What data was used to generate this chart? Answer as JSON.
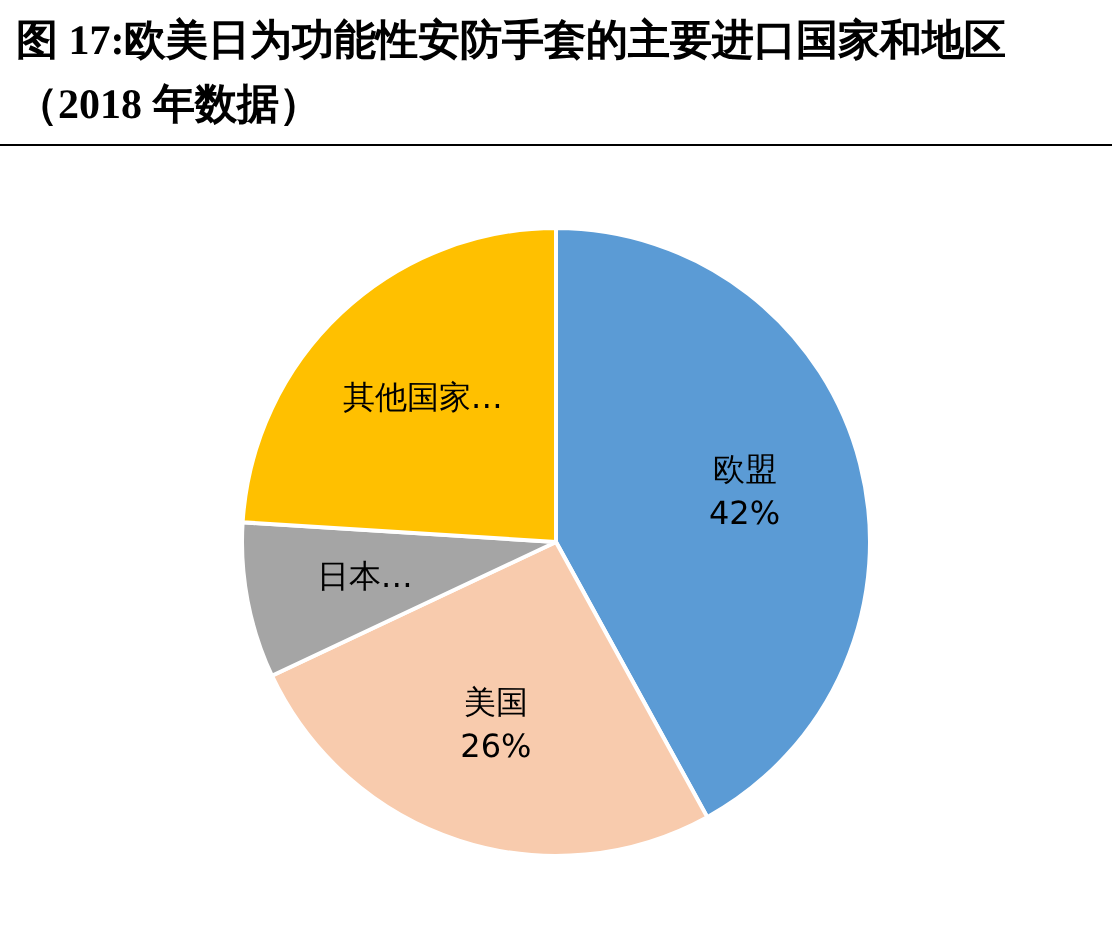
{
  "chart_data": {
    "type": "pie",
    "title": "图 17:欧美日为功能性安防手套的主要进口国家和地区（2018 年数据）",
    "categories": [
      "欧盟",
      "美国",
      "日本…",
      "其他国家…"
    ],
    "values": [
      42,
      26,
      8,
      24
    ],
    "colors": [
      "#5b9bd5",
      "#f8cbad",
      "#a5a5a5",
      "#ffc000"
    ],
    "value_labels": [
      "42%",
      "26%",
      null,
      null
    ],
    "legend": false
  }
}
